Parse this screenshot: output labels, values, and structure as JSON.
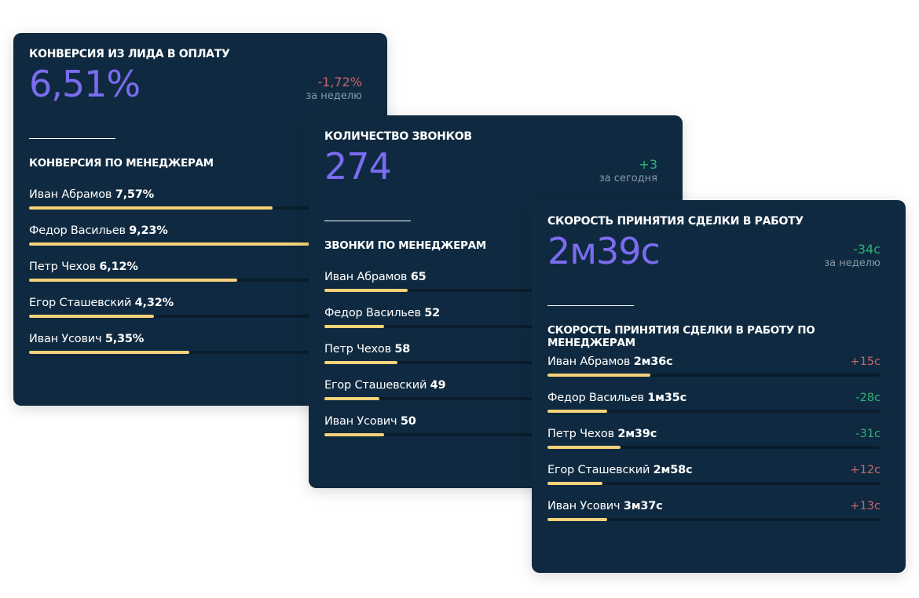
{
  "colors": {
    "card": "#0f2a40",
    "accent": "#7b6cf0",
    "bar": "#f5d27a",
    "negative": "#c9666b",
    "positive": "#2fb37a"
  },
  "cards": [
    {
      "title": "КОНВЕРСИЯ ИЗ ЛИДА В ОПЛАТУ",
      "value": "6,51%",
      "delta": "-1,72%",
      "delta_tone": "neg",
      "period": "за неделю",
      "subtitle": "КОНВЕРСИЯ ПО МЕНЕДЖЕРАМ",
      "rows": [
        {
          "name": "Иван Абрамов",
          "value": "7,57%",
          "fill": 0.73
        },
        {
          "name": "Федор Васильев",
          "value": "9,23%",
          "fill": 0.9
        },
        {
          "name": "Петр Чехов",
          "value": "6,12%",
          "fill": 0.625
        },
        {
          "name": "Егор Сташевский",
          "value": "4,32%",
          "fill": 0.375
        },
        {
          "name": "Иван Усович",
          "value": "5,35%",
          "fill": 0.48
        }
      ]
    },
    {
      "title": "КОЛИЧЕСТВО ЗВОНКОВ",
      "value": "274",
      "delta": "+3",
      "delta_tone": "pos",
      "period": "за сегодня",
      "subtitle": "ЗВОНКИ ПО МЕНЕДЖЕРАМ",
      "rows": [
        {
          "name": "Иван Абрамов",
          "value": "65",
          "fill": 0.25
        },
        {
          "name": "Федор Васильев",
          "value": "52",
          "fill": 0.18
        },
        {
          "name": "Петр Чехов",
          "value": "58",
          "fill": 0.22
        },
        {
          "name": "Егор Сташевский",
          "value": "49",
          "fill": 0.165
        },
        {
          "name": "Иван Усович",
          "value": "50",
          "fill": 0.18
        }
      ]
    },
    {
      "title": "СКОРОСТЬ ПРИНЯТИЯ СДЕЛКИ В РАБОТУ",
      "value": "2м39с",
      "delta": "-34с",
      "delta_tone": "pos",
      "period": "за неделю",
      "subtitle": "СКОРОСТЬ ПРИНЯТИЯ СДЕЛКИ В РАБОТУ ПО МЕНЕДЖЕРАМ",
      "rows": [
        {
          "name": "Иван Абрамов",
          "value": "2м36с",
          "change": "+15с",
          "tone": "neg",
          "fill": 0.31
        },
        {
          "name": "Федор Васильев",
          "value": "1м35с",
          "change": "-28с",
          "tone": "pos",
          "fill": 0.18
        },
        {
          "name": "Петр Чехов",
          "value": "2м39с",
          "change": "-31с",
          "tone": "pos",
          "fill": 0.22
        },
        {
          "name": "Егор Сташевский",
          "value": "2м58с",
          "change": "+12с",
          "tone": "neg",
          "fill": 0.165
        },
        {
          "name": "Иван Усович",
          "value": "3м37с",
          "change": "+13с",
          "tone": "neg",
          "fill": 0.18
        }
      ]
    }
  ]
}
